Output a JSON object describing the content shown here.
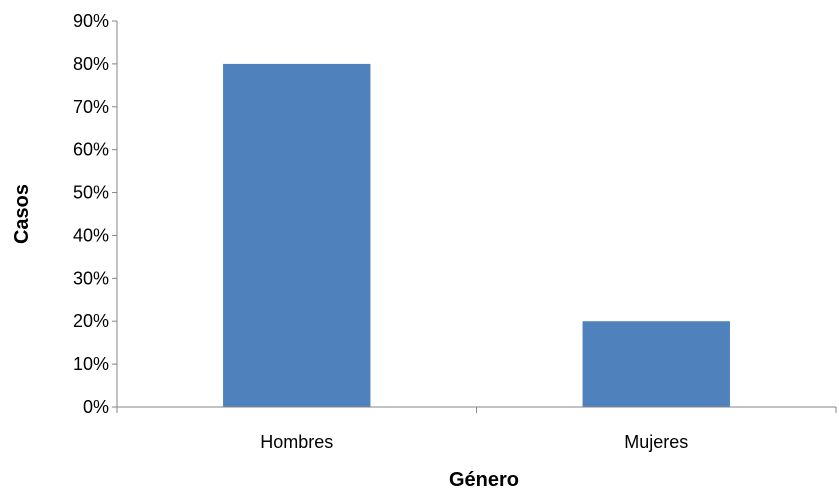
{
  "chart_data": {
    "type": "bar",
    "categories": [
      "Hombres",
      "Mujeres"
    ],
    "values": [
      80,
      20
    ],
    "value_unit": "%",
    "title": "",
    "xlabel": "Género",
    "ylabel": "Casos",
    "ylim": [
      0,
      90
    ],
    "yticks": [
      "0%",
      "10%",
      "20%",
      "30%",
      "40%",
      "50%",
      "60%",
      "70%",
      "80%",
      "90%"
    ],
    "grid": false,
    "legend": "none",
    "colors": {
      "bar": "#4F81BD",
      "axis": "#868686"
    }
  }
}
